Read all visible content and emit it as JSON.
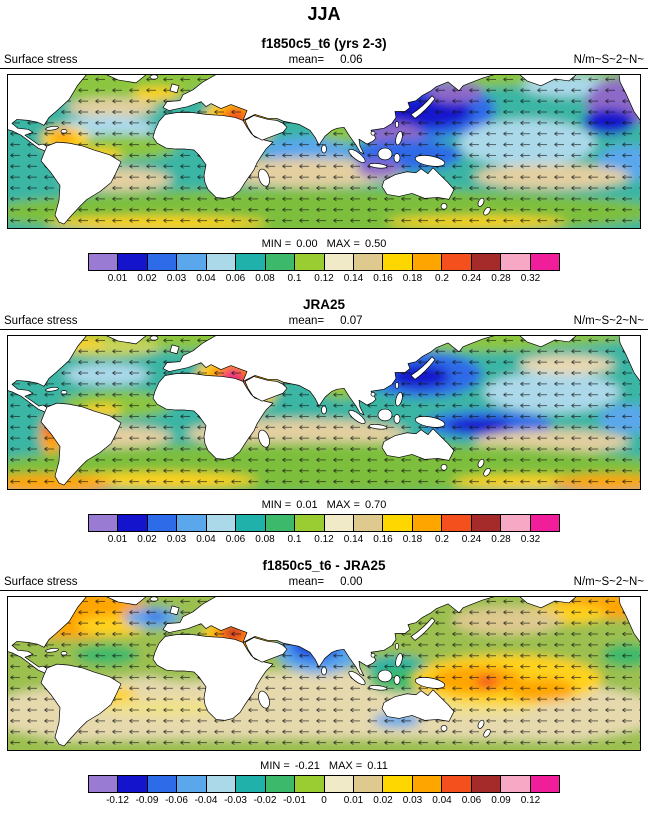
{
  "figure_title": "JJA",
  "colorbar": {
    "colors": [
      "#9a7bd4",
      "#1414cc",
      "#2e6be8",
      "#5aa7ec",
      "#abd9ea",
      "#20b2aa",
      "#3cb96a",
      "#9acd32",
      "#f0eac8",
      "#dec98e",
      "#ffd700",
      "#ffa500",
      "#f4501e",
      "#a52a2a",
      "#f7a8c4",
      "#f01e9b"
    ]
  },
  "panels": [
    {
      "title": "f1850c5_t6 (yrs 2-3)",
      "field_label": "Surface stress",
      "mean_label": "mean=",
      "mean_value": "0.06",
      "units": "N/m~S~2~N~",
      "min_label": "MIN =",
      "min_value": "0.00",
      "max_label": "MAX =",
      "max_value": "0.50",
      "ticks": [
        "0.01",
        "0.02",
        "0.03",
        "0.04",
        "0.06",
        "0.08",
        "0.1",
        "0.12",
        "0.14",
        "0.16",
        "0.18",
        "0.2",
        "0.24",
        "0.28",
        "0.32"
      ]
    },
    {
      "title": "JRA25",
      "field_label": "Surface stress",
      "mean_label": "mean=",
      "mean_value": "0.07",
      "units": "N/m~S~2~N~",
      "min_label": "MIN =",
      "min_value": "0.01",
      "max_label": "MAX =",
      "max_value": "0.70",
      "ticks": [
        "0.01",
        "0.02",
        "0.03",
        "0.04",
        "0.06",
        "0.08",
        "0.1",
        "0.12",
        "0.14",
        "0.16",
        "0.18",
        "0.2",
        "0.24",
        "0.28",
        "0.32"
      ]
    },
    {
      "title": "f1850c5_t6 - JRA25",
      "field_label": "Surface stress",
      "mean_label": "mean=",
      "mean_value": "0.00",
      "units": "N/m~S~2~N~",
      "min_label": "MIN =",
      "min_value": "-0.21",
      "max_label": "MAX =",
      "max_value": "0.11",
      "ticks": [
        "-0.12",
        "-0.09",
        "-0.06",
        "-0.04",
        "-0.03",
        "-0.02",
        "-0.01",
        "0",
        "0.01",
        "0.02",
        "0.03",
        "0.04",
        "0.06",
        "0.09",
        "0.12"
      ]
    }
  ],
  "chart_data": [
    {
      "type": "heatmap",
      "title": "f1850c5_t6 (yrs 2-3)",
      "variable": "Surface stress",
      "season": "JJA",
      "units": "N/m~S~2~N~",
      "projection": "global latitude-longitude map with continents outlined",
      "overlay": "surface wind stress vector arrows",
      "mean": 0.06,
      "min": 0.0,
      "max": 0.5,
      "contour_levels": [
        0.01,
        0.02,
        0.03,
        0.04,
        0.06,
        0.08,
        0.1,
        0.12,
        0.14,
        0.16,
        0.18,
        0.2,
        0.24,
        0.28,
        0.32
      ],
      "legend_position": "bottom colorbar"
    },
    {
      "type": "heatmap",
      "title": "JRA25",
      "variable": "Surface stress",
      "season": "JJA",
      "units": "N/m~S~2~N~",
      "projection": "global latitude-longitude map with continents outlined",
      "overlay": "surface wind stress vector arrows",
      "mean": 0.07,
      "min": 0.01,
      "max": 0.7,
      "contour_levels": [
        0.01,
        0.02,
        0.03,
        0.04,
        0.06,
        0.08,
        0.1,
        0.12,
        0.14,
        0.16,
        0.18,
        0.2,
        0.24,
        0.28,
        0.32
      ],
      "legend_position": "bottom colorbar"
    },
    {
      "type": "heatmap",
      "title": "f1850c5_t6 - JRA25",
      "variable": "Surface stress difference",
      "season": "JJA",
      "units": "N/m~S~2~N~",
      "projection": "global latitude-longitude map with continents outlined",
      "overlay": "surface wind stress difference vector arrows",
      "mean": 0.0,
      "min": -0.21,
      "max": 0.11,
      "contour_levels": [
        -0.12,
        -0.09,
        -0.06,
        -0.04,
        -0.03,
        -0.02,
        -0.01,
        0,
        0.01,
        0.02,
        0.03,
        0.04,
        0.06,
        0.09,
        0.12
      ],
      "legend_position": "bottom colorbar"
    }
  ]
}
